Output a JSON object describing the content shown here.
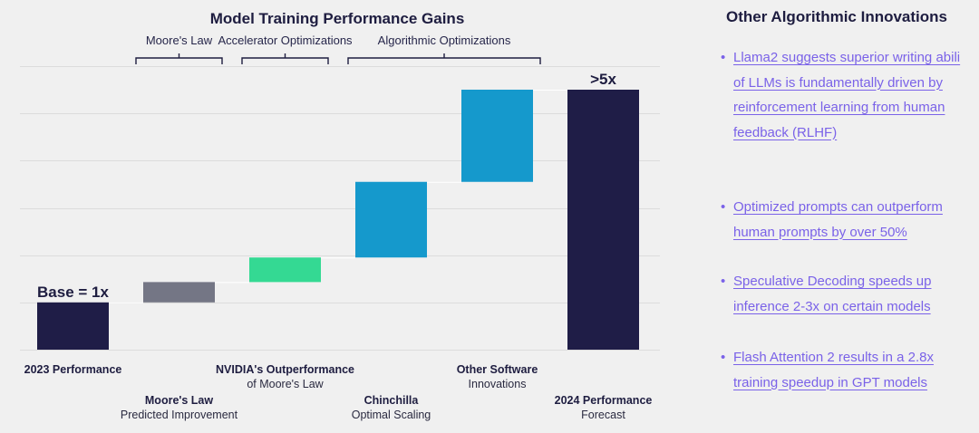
{
  "chart_data": {
    "type": "waterfall",
    "title": "Model Training Performance Gains",
    "ylim": [
      0,
      5.5
    ],
    "gridlines": [
      0,
      1,
      2,
      3,
      4,
      5,
      6
    ],
    "bars": [
      {
        "label": "2023 Performance",
        "sublabel": "",
        "start": 0,
        "end": 1,
        "color": "#1f1d47",
        "row": 0
      },
      {
        "label": "Moore's Law",
        "sublabel": "Predicted Improvement",
        "start": 1,
        "end": 1.43,
        "color": "#747685",
        "row": 1
      },
      {
        "label": "NVIDIA's Outperformance",
        "sublabel": "of Moore's Law",
        "start": 1.43,
        "end": 1.95,
        "color": "#34d993",
        "row": 0
      },
      {
        "label": "Chinchilla",
        "sublabel": "Optimal Scaling",
        "start": 1.95,
        "end": 3.55,
        "color": "#1599cc",
        "row": 1
      },
      {
        "label": "Other Software",
        "sublabel": "Innovations",
        "start": 3.55,
        "end": 5.5,
        "color": "#1599cc",
        "row": 0
      },
      {
        "label": "2024 Performance",
        "sublabel": "Forecast",
        "start": 0,
        "end": 5.5,
        "color": "#1f1d47",
        "row": 1
      }
    ],
    "data_labels": [
      {
        "bar": 0,
        "text": "Base = 1x"
      },
      {
        "bar": 5,
        "text": ">5x"
      }
    ],
    "brackets": [
      {
        "label": "Moore's Law",
        "from_bar": 1,
        "to_bar": 1
      },
      {
        "label": "Accelerator Optimizations",
        "from_bar": 2,
        "to_bar": 2
      },
      {
        "label": "Algorithmic Optimizations",
        "from_bar": 3,
        "to_bar": 4
      }
    ]
  },
  "side_panel": {
    "title": "Other Algorithmic Innovations",
    "items": [
      {
        "text": "Llama2 suggests superior writing abili\nof LLMs is fundamentally driven by\nreinforcement learning from human\nfeedback (RLHF)"
      },
      {
        "text": "Optimized prompts can outperform\nhuman prompts by over 50%"
      },
      {
        "text": "Speculative Decoding speeds up\ninference 2-3x on certain models"
      },
      {
        "text": "Flash Attention 2 results in a 2.8x\ntraining speedup in GPT models"
      }
    ],
    "bullet": "•",
    "link_color": "#7a62e8"
  }
}
